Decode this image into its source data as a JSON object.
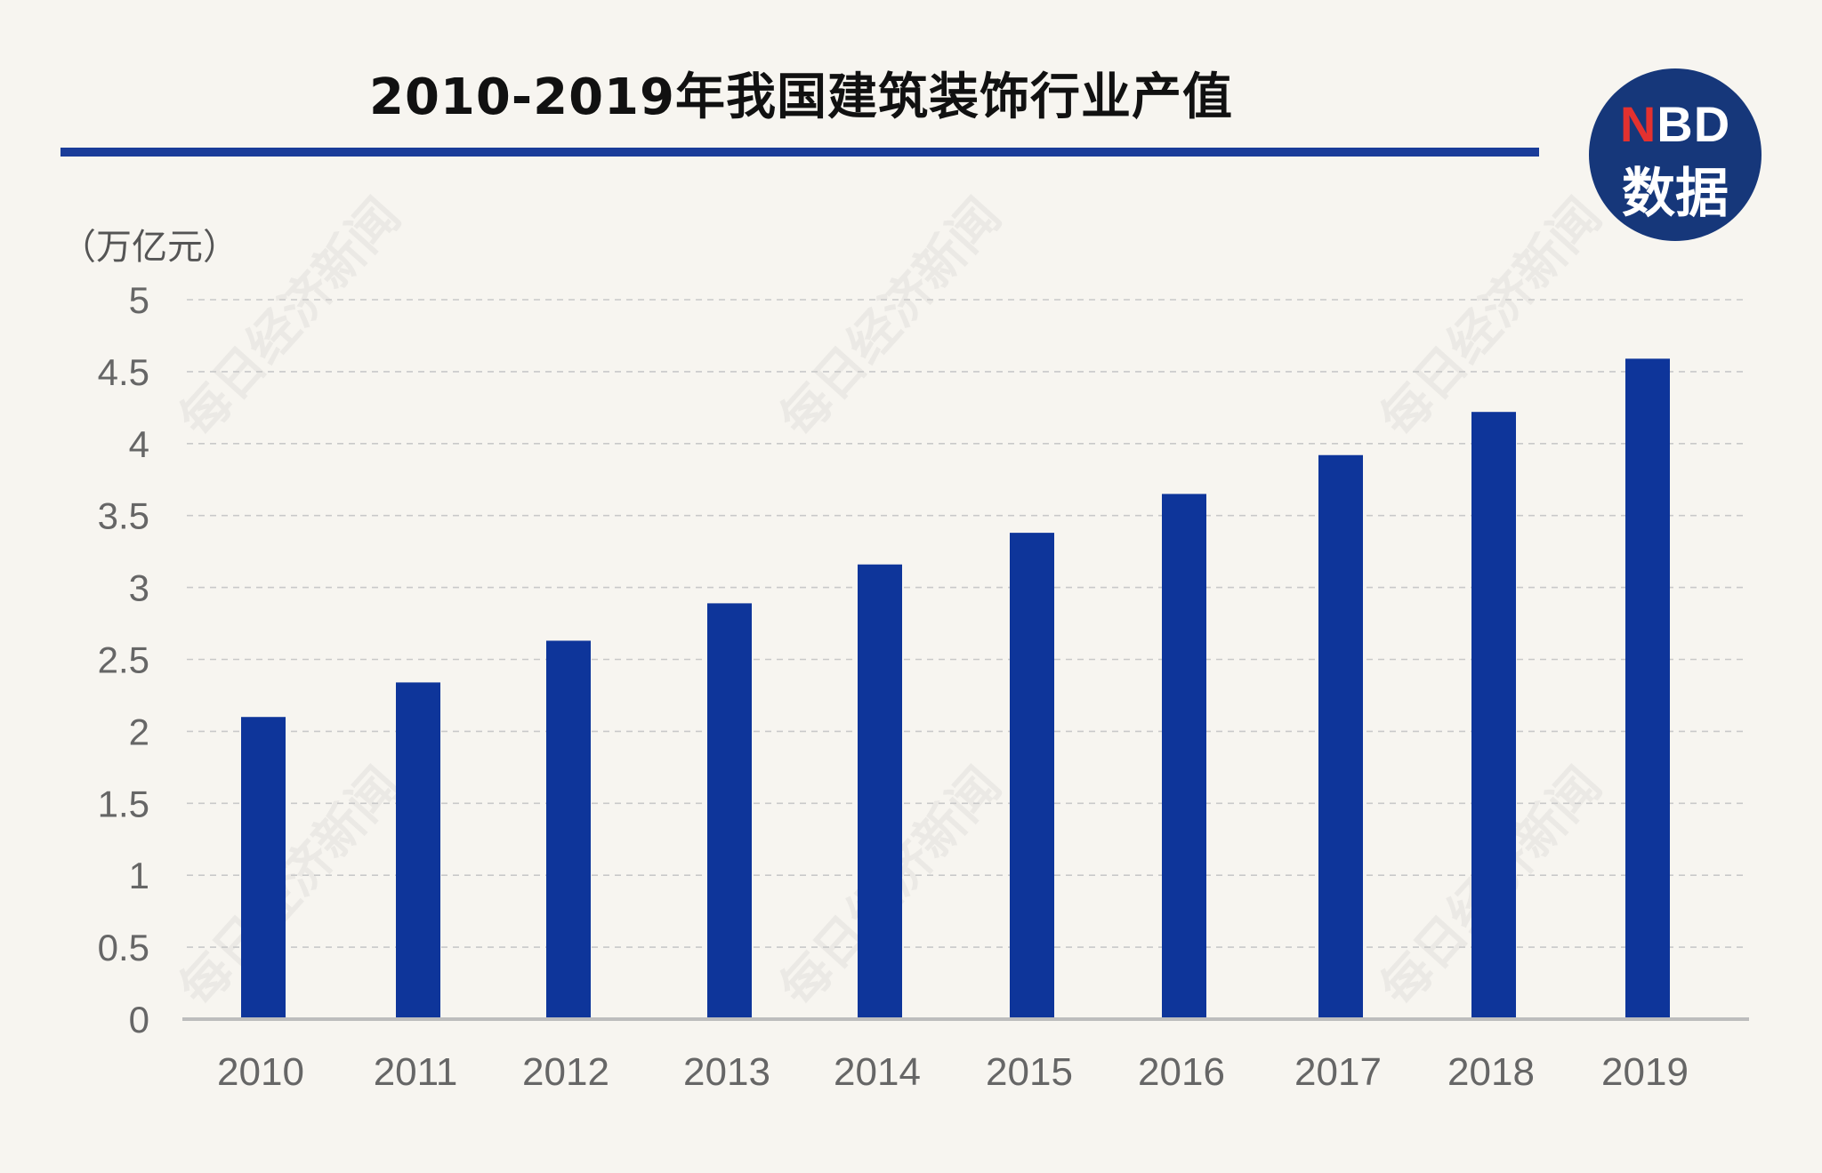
{
  "header": {
    "title": "2010-2019年我国建筑装饰行业产值",
    "badge_top_n": "N",
    "badge_top_rest": "BD",
    "badge_bottom": "数据"
  },
  "watermark": "每日经济新闻",
  "colors": {
    "bar": "#0e359a",
    "rule": "#1a3c99",
    "badge": "#16377a",
    "badge_accent": "#e4312f",
    "background": "#f7f5f0"
  },
  "chart_data": {
    "type": "bar",
    "title": "2010-2019年我国建筑装饰行业产值",
    "unit_label": "（万亿元）",
    "xlabel": "",
    "ylabel": "万亿元",
    "categories": [
      "2010",
      "2011",
      "2012",
      "2013",
      "2014",
      "2015",
      "2016",
      "2017",
      "2018",
      "2019"
    ],
    "values": [
      2.1,
      2.34,
      2.63,
      2.89,
      3.16,
      3.38,
      3.65,
      3.92,
      4.22,
      4.59
    ],
    "yticks": [
      "0",
      "0.5",
      "1",
      "1.5",
      "2",
      "2.5",
      "3",
      "3.5",
      "4",
      "4.5",
      "5"
    ],
    "ylim": [
      0,
      5
    ],
    "grid": true,
    "legend": "none"
  }
}
